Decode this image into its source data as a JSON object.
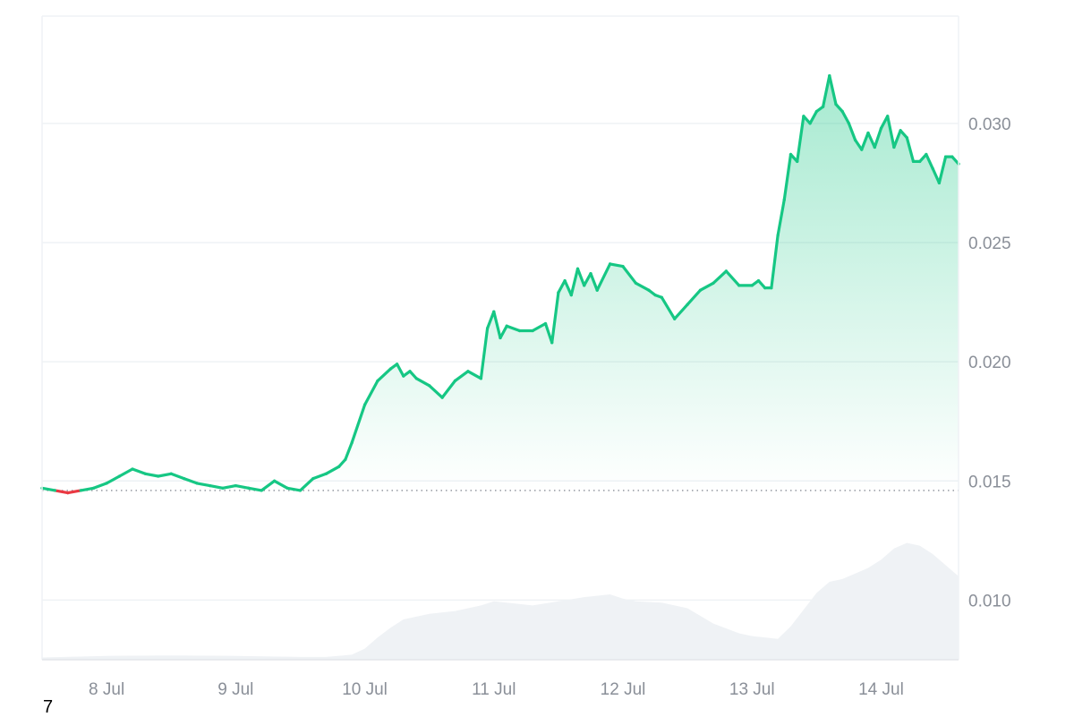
{
  "chart_data": {
    "type": "area",
    "grid": true,
    "colors": {
      "up": "#16c784",
      "down": "#ea3943",
      "volume": "#eff2f5",
      "grid": "#eff2f5",
      "baseline": "#8a8f98"
    },
    "xlim": [
      0,
      7.1
    ],
    "ylim": [
      0.0075,
      0.0345
    ],
    "baseline": 0.0146,
    "x_tick_values": [
      0.5,
      1.5,
      2.5,
      3.5,
      4.5,
      5.5,
      6.5
    ],
    "x_tick_labels": [
      "8 Jul",
      "9 Jul",
      "10 Jul",
      "11 Jul",
      "12 Jul",
      "13 Jul",
      "14 Jul"
    ],
    "y_tick_values": [
      0.01,
      0.015,
      0.02,
      0.025,
      0.03
    ],
    "y_tick_labels": [
      "0.010",
      "0.015",
      "0.020",
      "0.025",
      "0.030"
    ],
    "series": [
      {
        "type": "line",
        "x": [
          0,
          0.1,
          0.2,
          0.3,
          0.4,
          0.5,
          0.6,
          0.7,
          0.8,
          0.9,
          1.0,
          1.1,
          1.2,
          1.3,
          1.4,
          1.5,
          1.6,
          1.7,
          1.8,
          1.9,
          2.0,
          2.1,
          2.2,
          2.3,
          2.35,
          2.4,
          2.5,
          2.6,
          2.7,
          2.75,
          2.8,
          2.85,
          2.9,
          3.0,
          3.1,
          3.2,
          3.3,
          3.4,
          3.45,
          3.5,
          3.55,
          3.6,
          3.7,
          3.8,
          3.9,
          3.95,
          4.0,
          4.05,
          4.1,
          4.15,
          4.2,
          4.25,
          4.3,
          4.4,
          4.5,
          4.6,
          4.7,
          4.75,
          4.8,
          4.9,
          5.0,
          5.1,
          5.2,
          5.3,
          5.4,
          5.5,
          5.55,
          5.6,
          5.65,
          5.7,
          5.75,
          5.8,
          5.85,
          5.9,
          5.95,
          6.0,
          6.05,
          6.1,
          6.15,
          6.2,
          6.25,
          6.3,
          6.35,
          6.4,
          6.45,
          6.5,
          6.55,
          6.6,
          6.65,
          6.7,
          6.75,
          6.8,
          6.85,
          6.9,
          6.95,
          7.0,
          7.05,
          7.1
        ],
        "values": [
          0.0147,
          0.0146,
          0.0145,
          0.0146,
          0.0147,
          0.0149,
          0.0152,
          0.0155,
          0.0153,
          0.0152,
          0.0153,
          0.0151,
          0.0149,
          0.0148,
          0.0147,
          0.0148,
          0.0147,
          0.0146,
          0.015,
          0.0147,
          0.0146,
          0.0151,
          0.0153,
          0.0156,
          0.0159,
          0.0166,
          0.0182,
          0.0192,
          0.0197,
          0.0199,
          0.0194,
          0.0196,
          0.0193,
          0.019,
          0.0185,
          0.0192,
          0.0196,
          0.0193,
          0.0214,
          0.0221,
          0.021,
          0.0215,
          0.0213,
          0.0213,
          0.0216,
          0.0208,
          0.0229,
          0.0234,
          0.0228,
          0.0239,
          0.0232,
          0.0237,
          0.023,
          0.0241,
          0.024,
          0.0233,
          0.023,
          0.0228,
          0.0227,
          0.0218,
          0.0224,
          0.023,
          0.0233,
          0.0238,
          0.0232,
          0.0232,
          0.0234,
          0.0231,
          0.0231,
          0.0253,
          0.0268,
          0.0287,
          0.0284,
          0.0303,
          0.03,
          0.0305,
          0.0307,
          0.032,
          0.0308,
          0.0305,
          0.03,
          0.0293,
          0.0289,
          0.0296,
          0.029,
          0.0298,
          0.0303,
          0.029,
          0.0297,
          0.0294,
          0.0284,
          0.0284,
          0.0287,
          0.0281,
          0.0275,
          0.0286,
          0.0286,
          0.0283
        ]
      },
      {
        "type": "volume",
        "x": [
          0,
          0.5,
          1.0,
          1.5,
          2.0,
          2.2,
          2.4,
          2.5,
          2.6,
          2.7,
          2.8,
          3.0,
          3.2,
          3.4,
          3.5,
          3.6,
          3.8,
          4.0,
          4.2,
          4.4,
          4.5,
          4.6,
          4.8,
          5.0,
          5.2,
          5.4,
          5.5,
          5.6,
          5.7,
          5.8,
          5.9,
          6.0,
          6.1,
          6.2,
          6.3,
          6.4,
          6.5,
          6.6,
          6.7,
          6.8,
          6.9,
          7.0,
          7.1
        ],
        "values": [
          0.8,
          1.4,
          1.5,
          1.4,
          1.0,
          1.0,
          1.8,
          4.0,
          8.0,
          11.5,
          14.5,
          16.5,
          17.5,
          19.5,
          21.0,
          20.5,
          19.5,
          21.0,
          22.5,
          23.5,
          22.0,
          21.0,
          20.5,
          18.5,
          13.0,
          9.5,
          8.5,
          8.0,
          7.5,
          12.0,
          18.0,
          24.0,
          28.0,
          29.0,
          31.0,
          33.0,
          36.0,
          40.0,
          42.0,
          41.0,
          38.0,
          34.0,
          30.0
        ]
      }
    ]
  },
  "footnote": "7"
}
